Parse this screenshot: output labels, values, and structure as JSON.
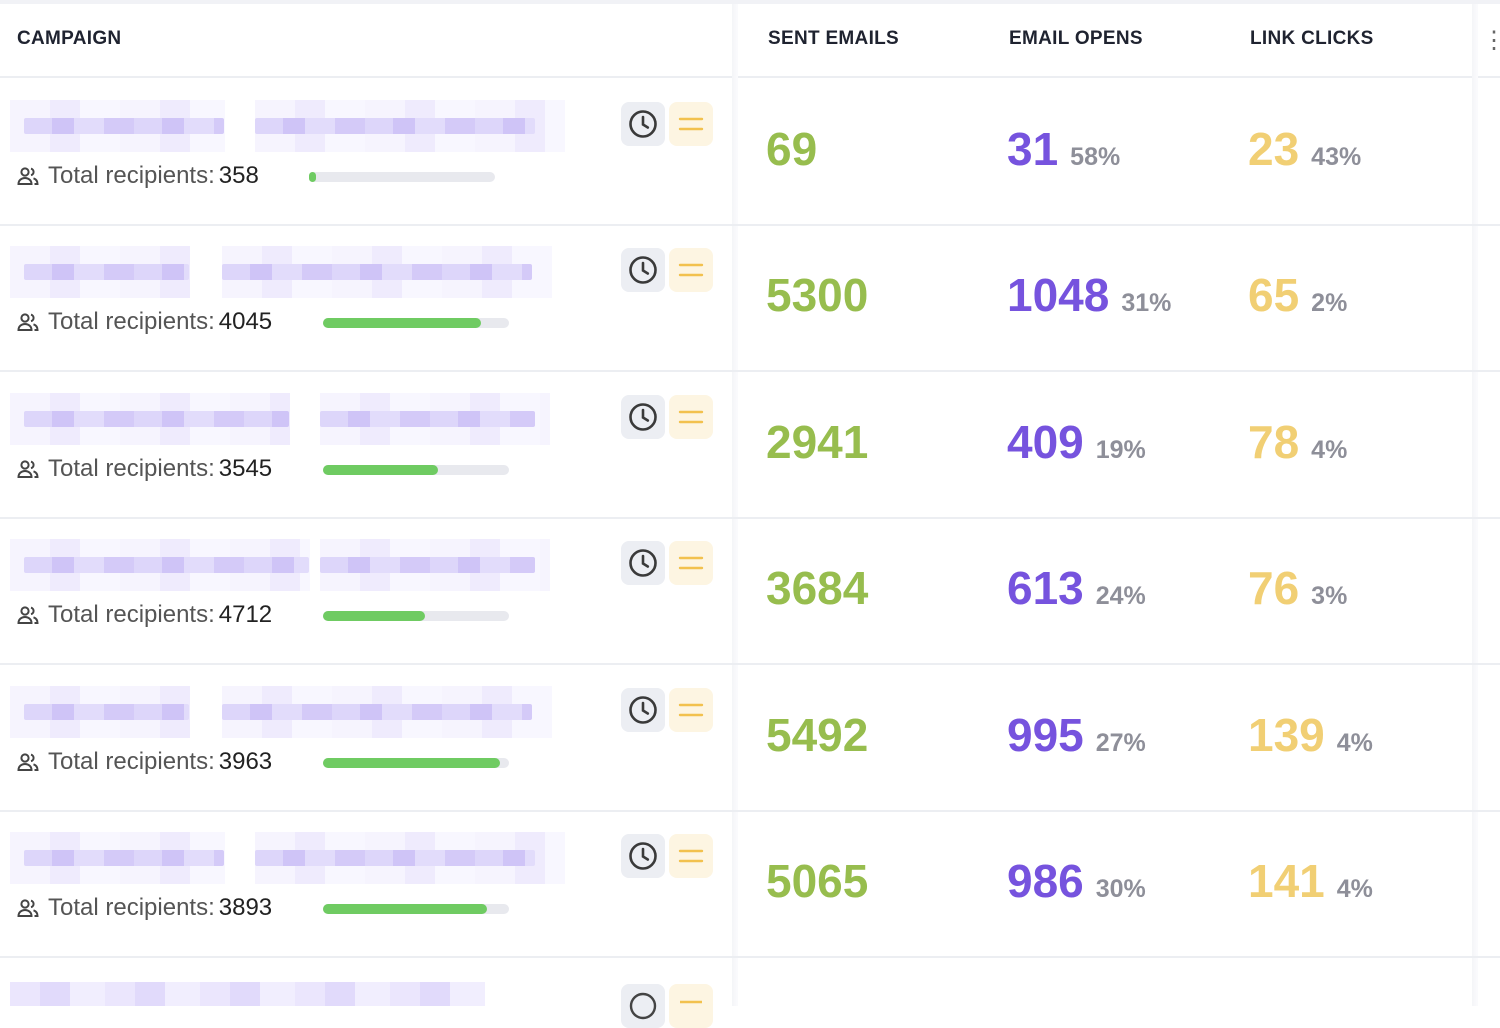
{
  "header": {
    "campaign": "CAMPAIGN",
    "sent_emails": "SENT EMAILS",
    "email_opens": "EMAIL OPENS",
    "link_clicks": "LINK CLICKS"
  },
  "recipients_label": "Total recipients:",
  "colors": {
    "sent": "#97bd4e",
    "opens": "#7653de",
    "clicks": "#f1cf74",
    "progress": "#6fcb62"
  },
  "icons": {
    "recipients": "users-icon",
    "schedule": "clock-icon",
    "menu": "menu-icon",
    "more": "more-icon"
  },
  "rows": [
    {
      "recipients": "358",
      "progress": 0.02,
      "sent": "69",
      "opens": "31",
      "opens_pct": "58%",
      "clicks": "23",
      "clicks_pct": "43%"
    },
    {
      "recipients": "4045",
      "progress": 0.85,
      "sent": "5300",
      "opens": "1048",
      "opens_pct": "31%",
      "clicks": "65",
      "clicks_pct": "2%"
    },
    {
      "recipients": "3545",
      "progress": 0.62,
      "sent": "2941",
      "opens": "409",
      "opens_pct": "19%",
      "clicks": "78",
      "clicks_pct": "4%"
    },
    {
      "recipients": "4712",
      "progress": 0.55,
      "sent": "3684",
      "opens": "613",
      "opens_pct": "24%",
      "clicks": "76",
      "clicks_pct": "3%"
    },
    {
      "recipients": "3963",
      "progress": 0.95,
      "sent": "5492",
      "opens": "995",
      "opens_pct": "27%",
      "clicks": "139",
      "clicks_pct": "4%"
    },
    {
      "recipients": "3893",
      "progress": 0.88,
      "sent": "5065",
      "opens": "986",
      "opens_pct": "30%",
      "clicks": "141",
      "clicks_pct": "4%"
    }
  ]
}
